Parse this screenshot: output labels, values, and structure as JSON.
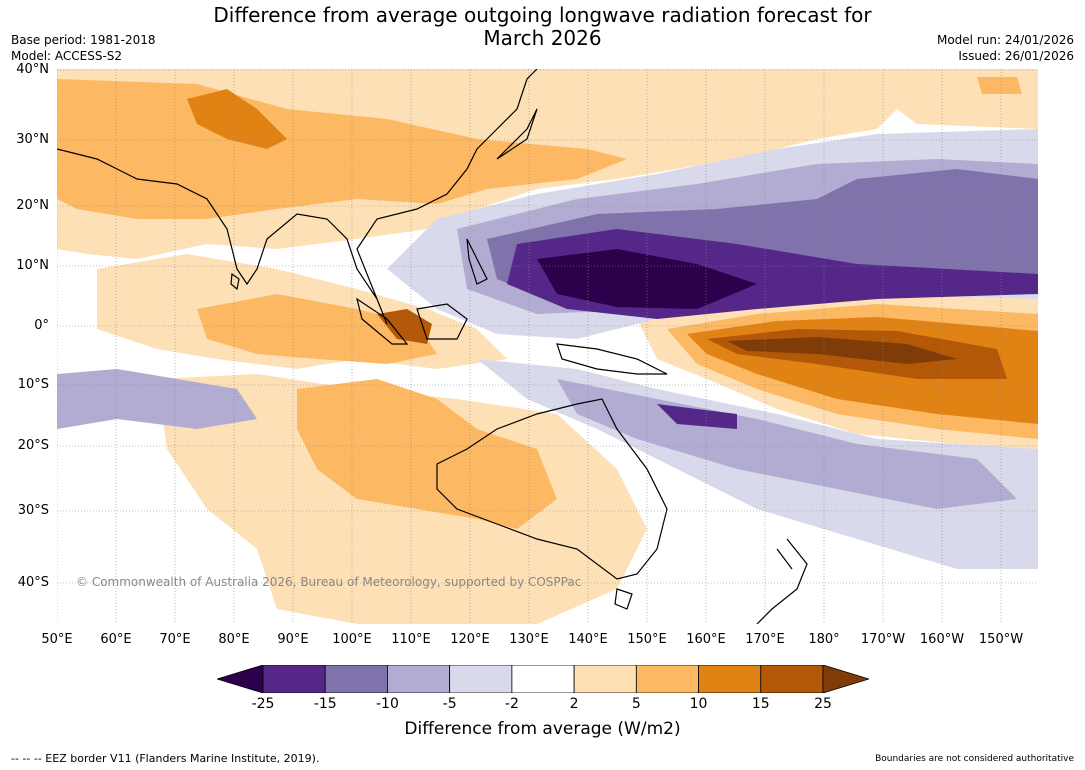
{
  "title_line1": "Difference from average outgoing longwave radiation forecast for",
  "title_line2": "March 2026",
  "base_period": "Base period: 1981-2018",
  "model": "Model: ACCESS-S2",
  "model_run": "Model run: 24/01/2026",
  "issued": "Issued: 26/01/2026",
  "lat_labels": [
    "40°N",
    "30°N",
    "20°N",
    "10°N",
    "0°",
    "10°S",
    "20°S",
    "30°S",
    "40°S"
  ],
  "lon_labels": [
    "50°E",
    "60°E",
    "70°E",
    "80°E",
    "90°E",
    "100°E",
    "110°E",
    "120°E",
    "130°E",
    "140°E",
    "150°E",
    "160°E",
    "170°E",
    "180°",
    "170°W",
    "160°W",
    "150°W"
  ],
  "copyright": "© Commonwealth of Australia 2026, Bureau of Meteorology, supported by COSPPac",
  "colorbar": {
    "ticks": [
      "-25",
      "-15",
      "-10",
      "-5",
      "-2",
      "2",
      "5",
      "10",
      "15",
      "25"
    ],
    "colors": [
      "#2d004b",
      "#542788",
      "#8073ac",
      "#b2abd2",
      "#d8daeb",
      "#ffffff",
      "#fee0b6",
      "#fdb863",
      "#e08214",
      "#b35806",
      "#7f3b08"
    ],
    "title": "Difference from average (W/m2)"
  },
  "footer_left": "--  --  -- EEZ border V11 (Flanders Marine Institute, 2019).",
  "footer_right": "Boundaries are not considered authoritative"
}
